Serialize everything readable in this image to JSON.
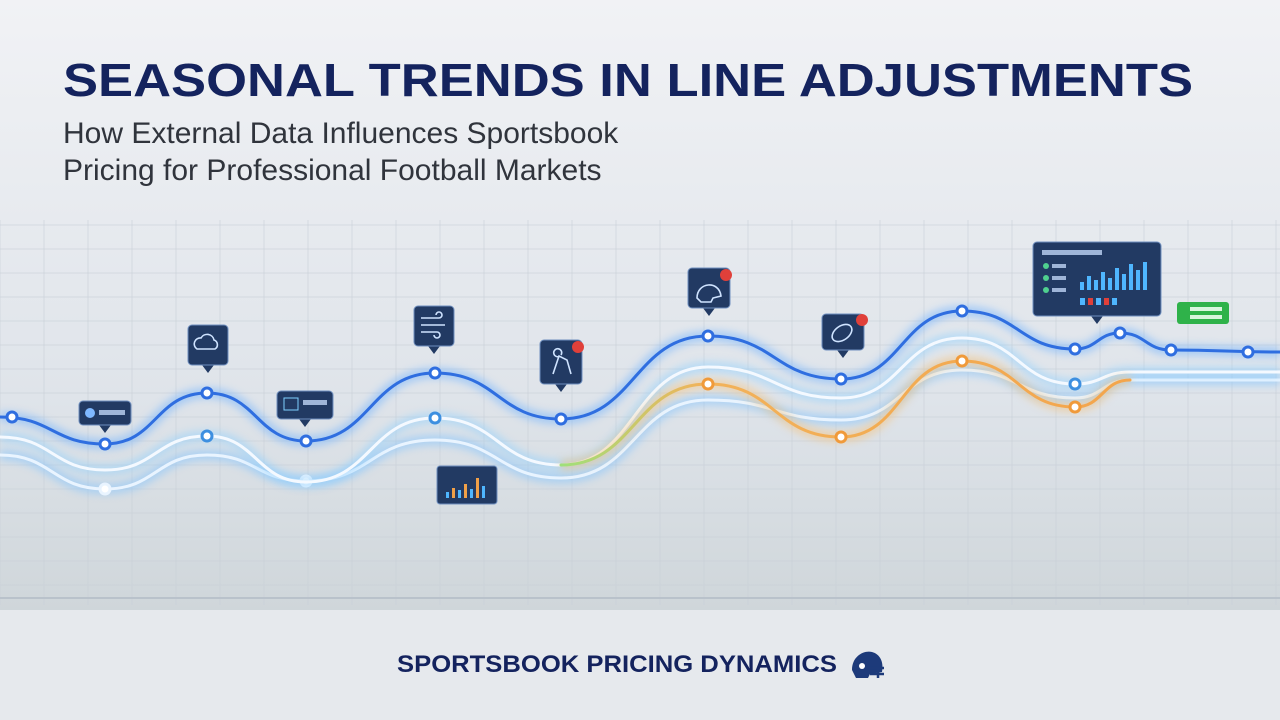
{
  "header": {
    "title": "SEASONAL TRENDS IN LINE ADJUSTMENTS",
    "subtitle": [
      "How External Data Influences Sportsbook",
      "Pricing for Professional Football Markets"
    ]
  },
  "footer": {
    "brand": "SPORTSBOOK PRICING DYNAMICS"
  }
}
